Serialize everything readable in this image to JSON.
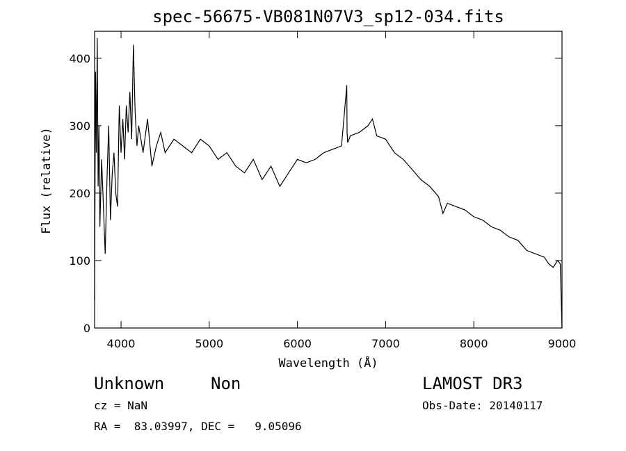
{
  "chart_data": {
    "type": "line",
    "title": "spec-56675-VB081N07V3_sp12-034.fits",
    "xlabel": "Wavelength (Å)",
    "ylabel": "Flux (relative)",
    "xlim": [
      3700,
      9000
    ],
    "ylim": [
      0,
      440
    ],
    "xticks": [
      4000,
      5000,
      6000,
      7000,
      8000,
      9000
    ],
    "yticks": [
      0,
      100,
      200,
      300,
      400
    ],
    "grid": false,
    "series": [
      {
        "x": [
          3700,
          3710,
          3720,
          3730,
          3740,
          3750,
          3760,
          3780,
          3800,
          3820,
          3840,
          3860,
          3880,
          3900,
          3920,
          3940,
          3960,
          3980,
          4000,
          4020,
          4040,
          4060,
          4080,
          4100,
          4120,
          4140,
          4160,
          4180,
          4200,
          4250,
          4300,
          4350,
          4400,
          4450,
          4500,
          4600,
          4700,
          4800,
          4900,
          5000,
          5100,
          5200,
          5300,
          5400,
          5500,
          5600,
          5700,
          5800,
          5900,
          6000,
          6100,
          6200,
          6300,
          6400,
          6500,
          6560,
          6563,
          6570,
          6600,
          6700,
          6800,
          6850,
          6900,
          7000,
          7100,
          7200,
          7300,
          7400,
          7500,
          7600,
          7650,
          7700,
          7800,
          7900,
          8000,
          8100,
          8200,
          8300,
          8400,
          8500,
          8600,
          8700,
          8800,
          8850,
          8900,
          8950,
          8980,
          9000
        ],
        "y": [
          40,
          380,
          260,
          430,
          210,
          300,
          150,
          250,
          180,
          110,
          220,
          300,
          160,
          230,
          260,
          200,
          180,
          330,
          260,
          310,
          250,
          330,
          290,
          350,
          280,
          420,
          320,
          270,
          300,
          260,
          310,
          240,
          270,
          290,
          260,
          280,
          270,
          260,
          280,
          270,
          250,
          260,
          240,
          230,
          250,
          220,
          240,
          210,
          230,
          250,
          245,
          250,
          260,
          265,
          270,
          360,
          290,
          275,
          285,
          290,
          300,
          310,
          285,
          280,
          260,
          250,
          235,
          220,
          210,
          195,
          170,
          185,
          180,
          175,
          165,
          160,
          150,
          145,
          135,
          130,
          115,
          110,
          105,
          95,
          90,
          100,
          95,
          0
        ]
      }
    ]
  },
  "footer": {
    "object_class": "Unknown",
    "subclass": "Non",
    "survey": "LAMOST DR3",
    "cz": "cz = NaN",
    "obs_date": "Obs-Date: 20140117",
    "coords": "RA =  83.03997, DEC =   9.05096"
  }
}
